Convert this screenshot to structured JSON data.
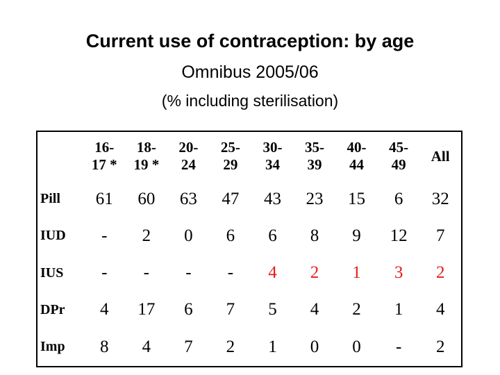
{
  "header": {
    "title": "Current use of contraception: by age",
    "subtitle": "Omnibus 2005/06",
    "note": "(% including sterilisation)"
  },
  "table": {
    "columns": [
      "16-\n17 *",
      "18-\n19 *",
      "20-\n24",
      "25-\n29",
      "30-\n34",
      "35-\n39",
      "40-\n44",
      "45-\n49",
      "All"
    ],
    "rows": [
      {
        "label": "Pill",
        "values": [
          61,
          60,
          63,
          47,
          43,
          23,
          15,
          6,
          32
        ]
      },
      {
        "label": "IUD",
        "values": [
          "-",
          2,
          0,
          6,
          6,
          8,
          9,
          12,
          7
        ]
      },
      {
        "label": "IUS",
        "values": [
          "-",
          "-",
          "-",
          "-",
          4,
          2,
          1,
          3,
          2
        ]
      },
      {
        "label": "DPr",
        "values": [
          4,
          17,
          6,
          7,
          5,
          4,
          2,
          1,
          4
        ]
      },
      {
        "label": "Imp",
        "values": [
          8,
          4,
          7,
          2,
          1,
          0,
          0,
          "-",
          2
        ]
      }
    ]
  }
}
